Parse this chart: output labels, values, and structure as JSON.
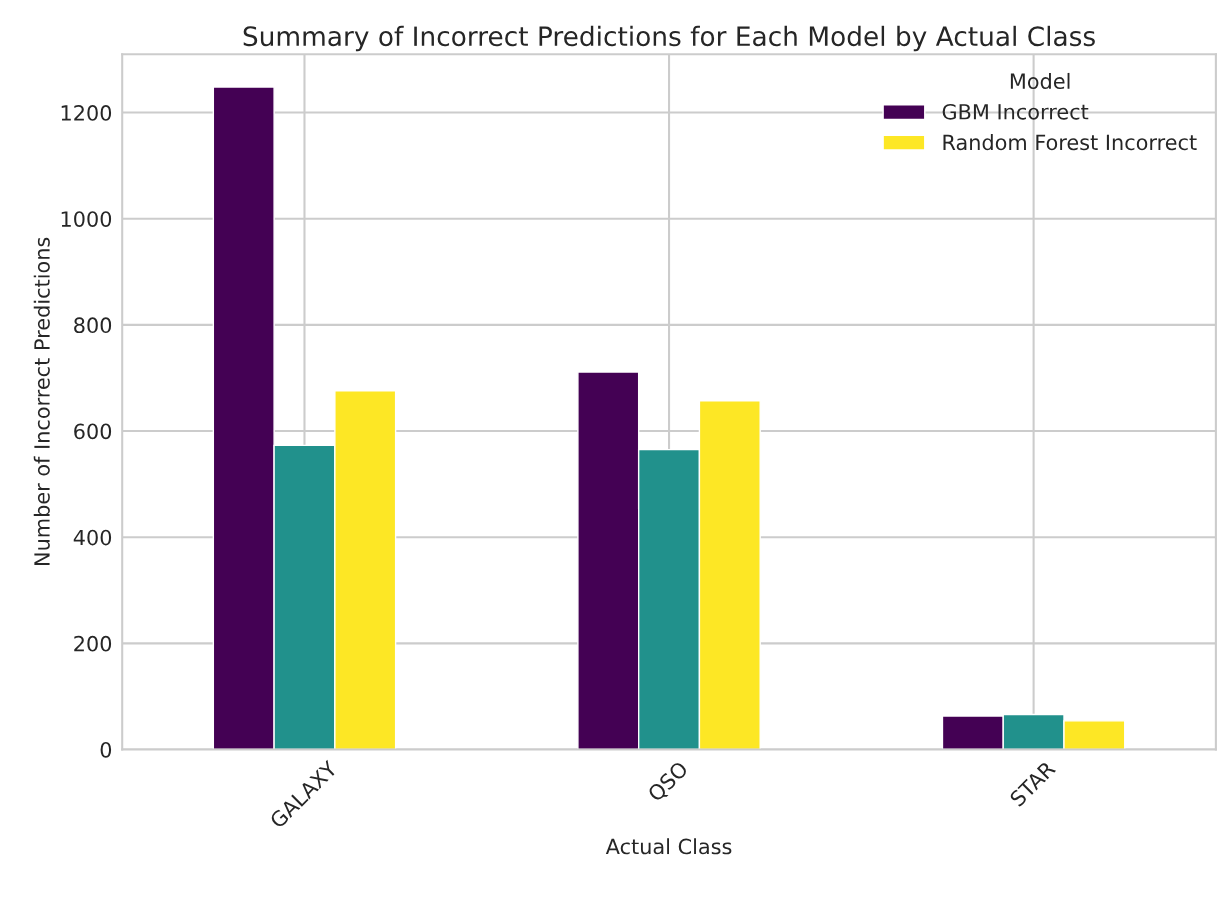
{
  "chart_data": {
    "type": "bar",
    "title": "Summary of Incorrect Predictions for Each Model by Actual Class",
    "xlabel": "Actual Class",
    "ylabel": "Number of Incorrect Predictions",
    "legend_title": "Model",
    "categories": [
      "GALAXY",
      "QSO",
      "STAR"
    ],
    "series": [
      {
        "name": "GBM Incorrect",
        "color": "#440154",
        "values": [
          1248,
          711,
          63
        ]
      },
      {
        "color": "#21918c",
        "values": [
          573,
          565,
          66
        ]
      },
      {
        "name": "Random Forest Incorrect",
        "color": "#fde725",
        "values": [
          676,
          657,
          54
        ]
      }
    ],
    "ylim": [
      0,
      1310
    ],
    "yticks": [
      0,
      200,
      400,
      600,
      800,
      1000,
      1200
    ],
    "grid": true,
    "legend": "top right"
  }
}
